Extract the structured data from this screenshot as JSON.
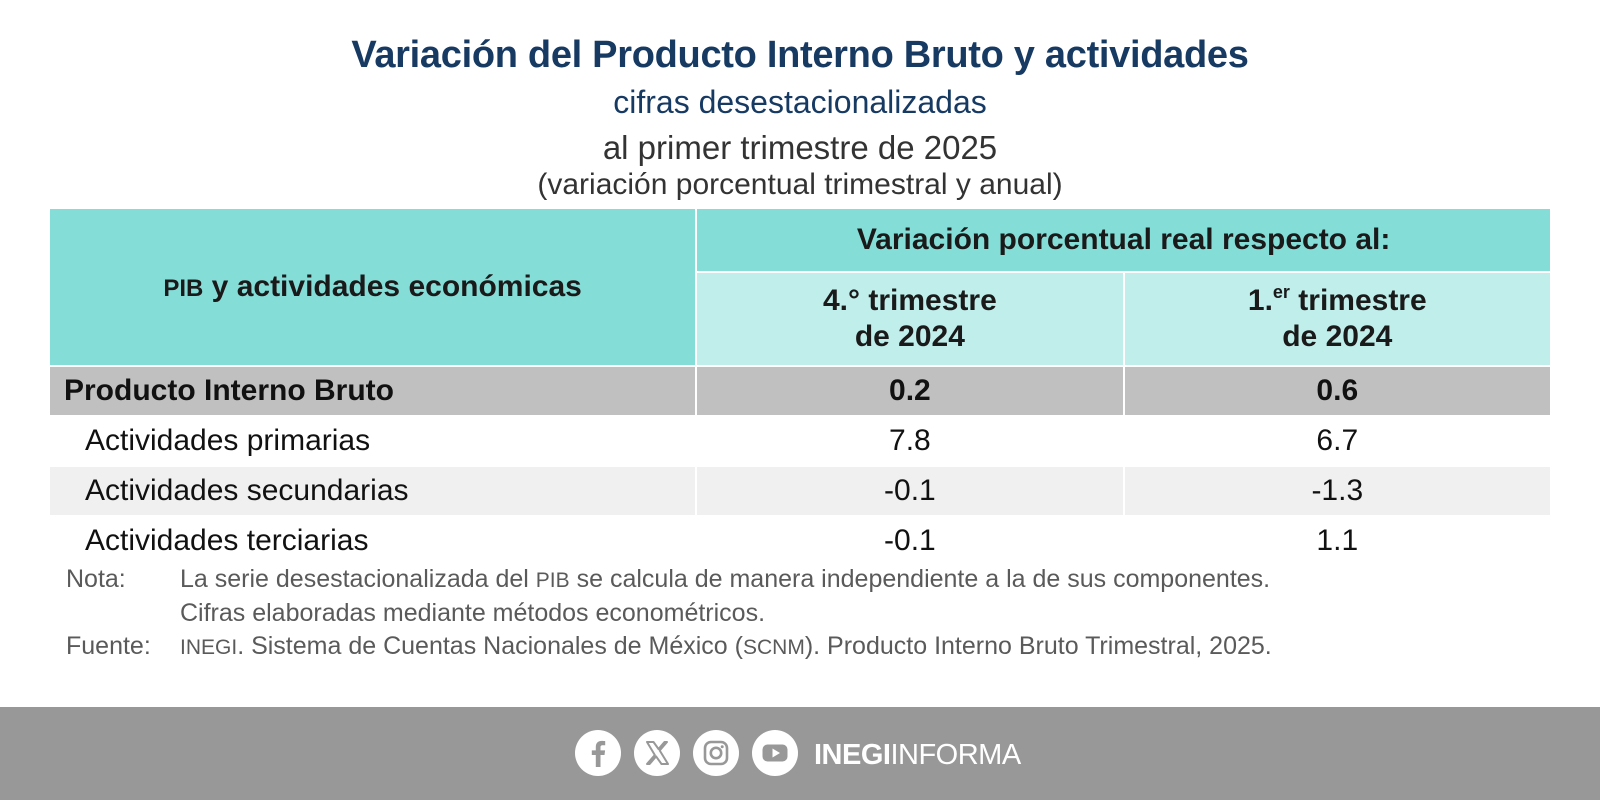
{
  "header": {
    "title": "Variación del Producto Interno Bruto y actividades",
    "subtitle": "cifras desestacionalizadas",
    "period": "al primer trimestre de 2025",
    "units": "(variación porcentual trimestral y anual)"
  },
  "table": {
    "row_header_small": "PIB",
    "row_header_rest": " y actividades económicas",
    "group_header": "Variación porcentual real respecto al:",
    "col1": {
      "num": "4.°",
      "line1_rest": " trimestre",
      "line2": "de 2024"
    },
    "col2": {
      "num": "1.",
      "sup": "er",
      "line1_rest": " trimestre",
      "line2": "de 2024"
    },
    "rows": [
      {
        "label": "Producto Interno Bruto",
        "q": "0.2",
        "a": "0.6"
      },
      {
        "label": "Actividades primarias",
        "q": "7.8",
        "a": "6.7"
      },
      {
        "label": "Actividades secundarias",
        "q": "-0.1",
        "a": "-1.3"
      },
      {
        "label": "Actividades terciarias",
        "q": "-0.1",
        "a": "1.1"
      }
    ]
  },
  "notes": {
    "nota_key": "Nota:",
    "nota_a": "La serie desestacionalizada del ",
    "nota_pib": "PIB",
    "nota_b": " se calcula de manera independiente a la de sus componentes.",
    "nota_line2": "Cifras elaboradas mediante métodos econométricos.",
    "fuente_key": "Fuente:",
    "fuente_inegi": "INEGI",
    "fuente_a": ". Sistema de Cuentas Nacionales de México (",
    "fuente_scnm": "SCNM",
    "fuente_b": "). Producto Interno Bruto Trimestral, 2025."
  },
  "footer": {
    "icons": [
      "facebook-icon",
      "x-icon",
      "instagram-icon",
      "youtube-icon"
    ],
    "brand_bold": "INEGI",
    "brand_light": "INFORMA"
  },
  "colors": {
    "title": "#173a63",
    "header_teal": "#85ddd8",
    "subheader_teal": "#bfeeeb",
    "pib_row": "#c0c0c0",
    "footer": "#989898"
  }
}
